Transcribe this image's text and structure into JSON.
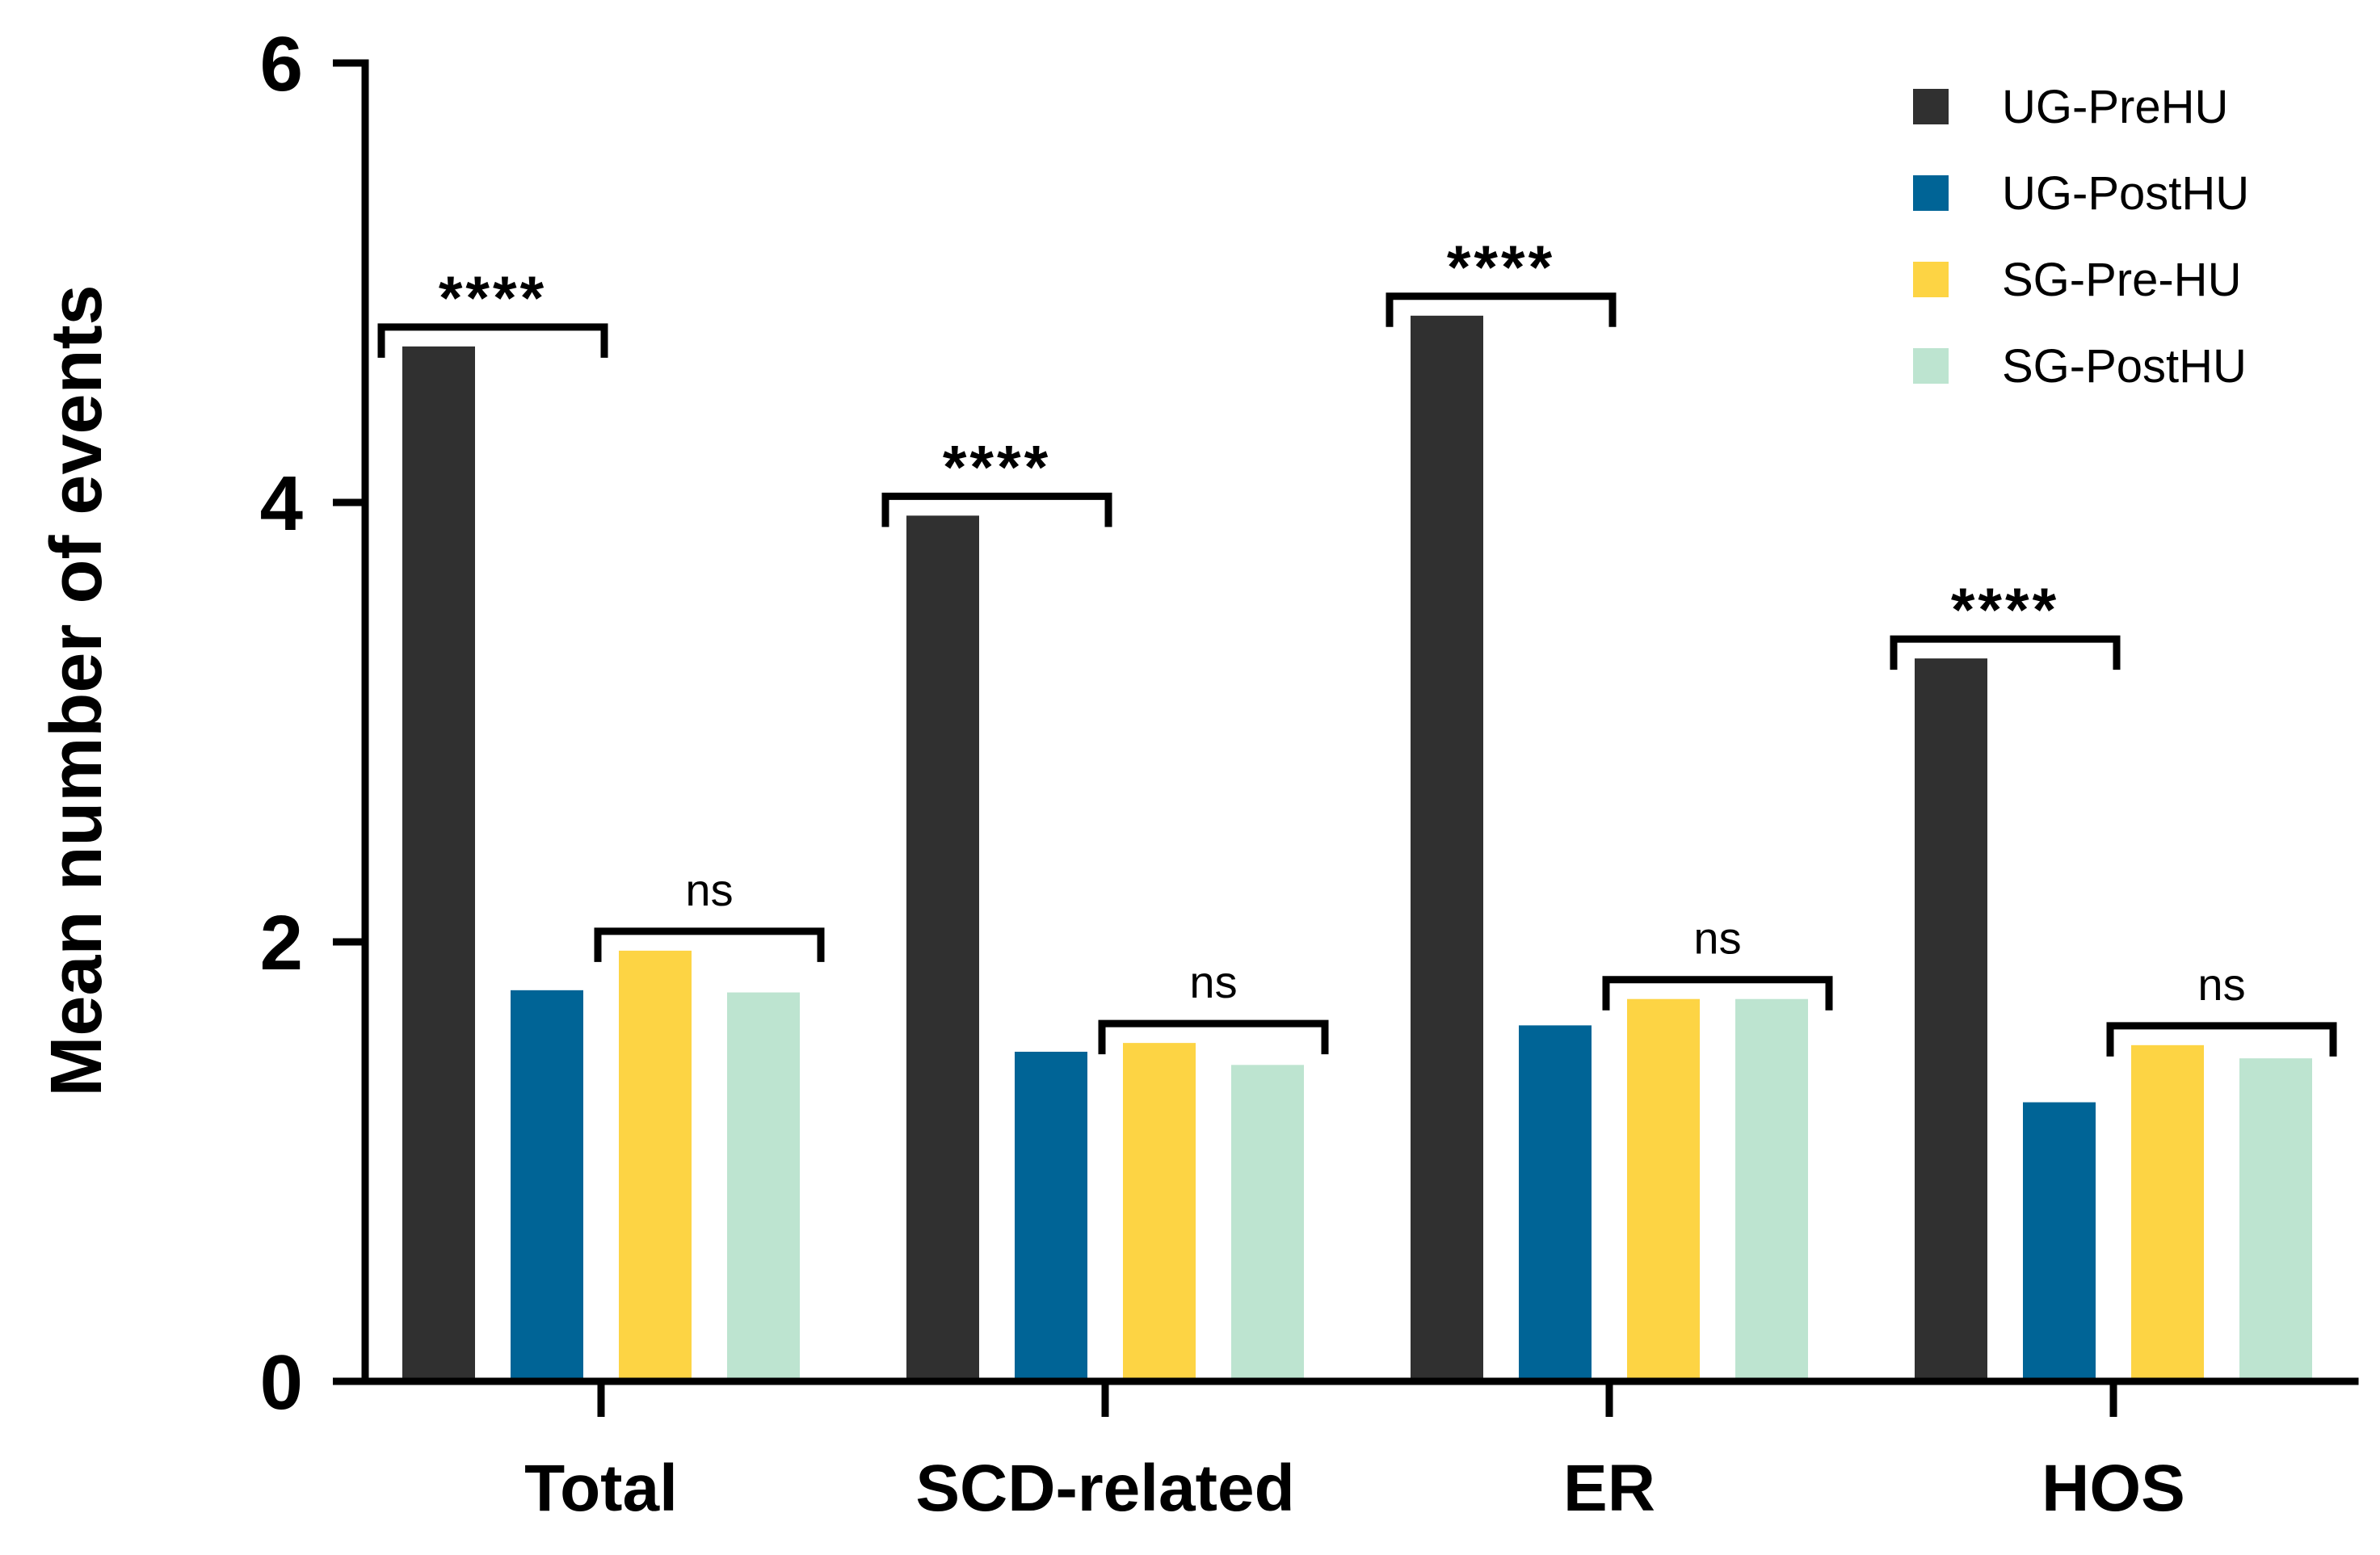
{
  "chart_data": {
    "type": "bar",
    "title": "",
    "xlabel": "",
    "ylabel": "Mean number of events",
    "ylim": [
      0,
      6
    ],
    "yticks": [
      0,
      2,
      4,
      6
    ],
    "grid": false,
    "legend_position": "top-right",
    "categories": [
      "Total",
      "SCD-related",
      "ER",
      "HOS"
    ],
    "series": [
      {
        "name": "UG-PreHU",
        "color": "#303030",
        "values": [
          4.71,
          3.94,
          4.85,
          3.29
        ]
      },
      {
        "name": "UG-PostHU",
        "color": "#006496",
        "values": [
          1.78,
          1.5,
          1.62,
          1.27
        ]
      },
      {
        "name": "SG-Pre-HU",
        "color": "#FDD444",
        "values": [
          1.96,
          1.54,
          1.74,
          1.53
        ]
      },
      {
        "name": "SG-PostHU",
        "color": "#BDE4D0",
        "values": [
          1.77,
          1.44,
          1.74,
          1.47
        ]
      }
    ],
    "annotations": [
      {
        "category": "Total",
        "label": "****",
        "pair": [
          0,
          1
        ]
      },
      {
        "category": "Total",
        "label": "ns",
        "pair": [
          2,
          3
        ]
      },
      {
        "category": "SCD-related",
        "label": "****",
        "pair": [
          0,
          1
        ]
      },
      {
        "category": "SCD-related",
        "label": "ns",
        "pair": [
          2,
          3
        ]
      },
      {
        "category": "ER",
        "label": "****",
        "pair": [
          0,
          1
        ]
      },
      {
        "category": "ER",
        "label": "ns",
        "pair": [
          2,
          3
        ]
      },
      {
        "category": "HOS",
        "label": "****",
        "pair": [
          0,
          1
        ]
      },
      {
        "category": "HOS",
        "label": "ns",
        "pair": [
          2,
          3
        ]
      }
    ]
  }
}
